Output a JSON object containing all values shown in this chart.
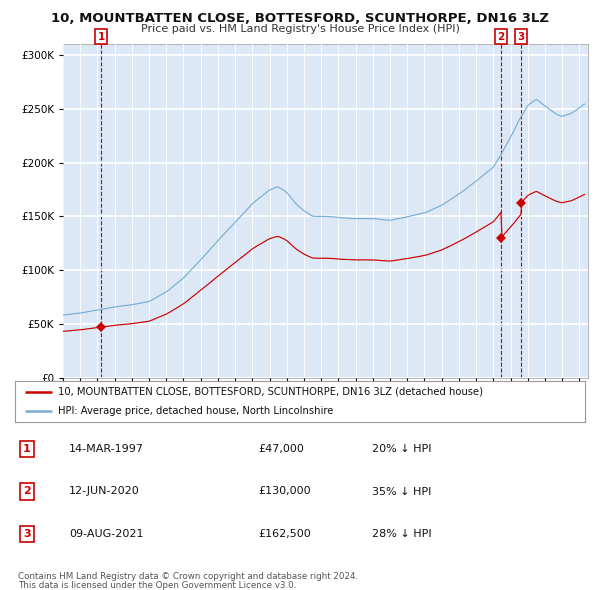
{
  "title": "10, MOUNTBATTEN CLOSE, BOTTESFORD, SCUNTHORPE, DN16 3LZ",
  "subtitle": "Price paid vs. HM Land Registry's House Price Index (HPI)",
  "legend_line1": "10, MOUNTBATTEN CLOSE, BOTTESFORD, SCUNTHORPE, DN16 3LZ (detached house)",
  "legend_line2": "HPI: Average price, detached house, North Lincolnshire",
  "footnote1": "Contains HM Land Registry data © Crown copyright and database right 2024.",
  "footnote2": "This data is licensed under the Open Government Licence v3.0.",
  "transactions": [
    {
      "num": 1,
      "date": "14-MAR-1997",
      "price": 47000,
      "hpi_diff": "20% ↓ HPI",
      "year": 1997.21
    },
    {
      "num": 2,
      "date": "12-JUN-2020",
      "price": 130000,
      "hpi_diff": "35% ↓ HPI",
      "year": 2020.45
    },
    {
      "num": 3,
      "date": "09-AUG-2021",
      "price": 162500,
      "hpi_diff": "28% ↓ HPI",
      "year": 2021.62
    }
  ],
  "red_color": "#cc0000",
  "blue_color": "#7aadd4",
  "dashed_color": "#cc0000",
  "bg_color": "#dce8f5",
  "grid_color": "#ffffff",
  "ylim": [
    0,
    310000
  ],
  "xlim_start": 1995.0,
  "xlim_end": 2025.5,
  "yticks": [
    0,
    50000,
    100000,
    150000,
    200000,
    250000,
    300000
  ]
}
